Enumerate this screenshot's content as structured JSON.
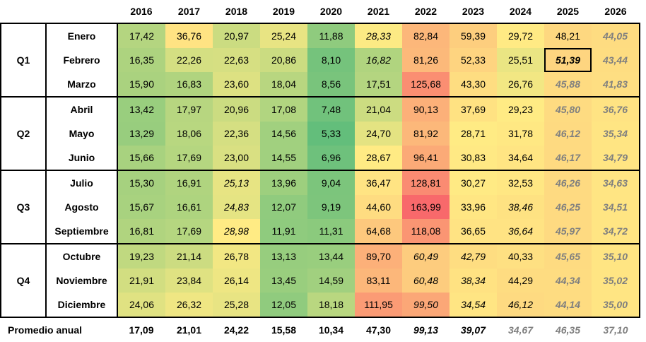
{
  "years": [
    "2016",
    "2017",
    "2018",
    "2019",
    "2020",
    "2021",
    "2022",
    "2023",
    "2024",
    "2025",
    "2026"
  ],
  "quarters": [
    "Q1",
    "Q2",
    "Q3",
    "Q4"
  ],
  "rows": [
    {
      "month": "Enero",
      "values": [
        "17,42",
        "36,76",
        "20,97",
        "25,24",
        "11,88",
        "28,33",
        "82,84",
        "59,39",
        "29,72",
        "48,21",
        "44,05"
      ]
    },
    {
      "month": "Febrero",
      "values": [
        "16,35",
        "22,26",
        "22,63",
        "20,86",
        "8,10",
        "16,82",
        "81,26",
        "52,33",
        "25,51",
        "51,39",
        "43,44"
      ]
    },
    {
      "month": "Marzo",
      "values": [
        "15,90",
        "16,83",
        "23,60",
        "18,04",
        "8,56",
        "17,51",
        "125,68",
        "43,30",
        "26,76",
        "45,88",
        "41,83"
      ]
    },
    {
      "month": "Abril",
      "values": [
        "13,42",
        "17,97",
        "20,96",
        "17,08",
        "7,48",
        "21,04",
        "90,13",
        "37,69",
        "29,23",
        "45,80",
        "36,76"
      ]
    },
    {
      "month": "Mayo",
      "values": [
        "13,29",
        "18,06",
        "22,36",
        "14,56",
        "5,33",
        "24,70",
        "81,92",
        "28,71",
        "31,78",
        "46,12",
        "35,34"
      ]
    },
    {
      "month": "Junio",
      "values": [
        "15,66",
        "17,69",
        "23,00",
        "14,55",
        "6,96",
        "28,67",
        "96,41",
        "30,83",
        "34,64",
        "46,17",
        "34,79"
      ]
    },
    {
      "month": "Julio",
      "values": [
        "15,30",
        "16,91",
        "25,13",
        "13,96",
        "9,04",
        "36,47",
        "128,81",
        "30,27",
        "32,53",
        "46,26",
        "34,63"
      ]
    },
    {
      "month": "Agosto",
      "values": [
        "15,67",
        "16,61",
        "24,83",
        "12,07",
        "9,19",
        "44,60",
        "163,99",
        "33,96",
        "38,46",
        "46,25",
        "34,51"
      ]
    },
    {
      "month": "Septiembre",
      "values": [
        "16,81",
        "17,69",
        "28,98",
        "11,91",
        "11,31",
        "64,68",
        "118,08",
        "36,65",
        "36,64",
        "45,97",
        "34,72"
      ]
    },
    {
      "month": "Octubre",
      "values": [
        "19,23",
        "21,14",
        "26,78",
        "13,13",
        "13,44",
        "89,70",
        "60,49",
        "42,79",
        "40,33",
        "45,65",
        "35,10"
      ]
    },
    {
      "month": "Noviembre",
      "values": [
        "21,91",
        "23,84",
        "26,14",
        "13,45",
        "14,59",
        "83,11",
        "60,48",
        "38,34",
        "44,29",
        "44,34",
        "35,02"
      ]
    },
    {
      "month": "Diciembre",
      "values": [
        "24,06",
        "26,32",
        "25,28",
        "12,05",
        "18,18",
        "111,95",
        "99,50",
        "34,54",
        "46,12",
        "44,14",
        "35,00"
      ]
    }
  ],
  "average": {
    "label": "Promedio anual",
    "values": [
      "17,09",
      "21,01",
      "24,22",
      "15,58",
      "10,34",
      "47,30",
      "99,13",
      "39,07",
      "34,67",
      "46,35",
      "37,10"
    ]
  },
  "styles": {
    "italic": [
      [
        0,
        5
      ],
      [
        1,
        5
      ],
      [
        6,
        2
      ],
      [
        7,
        2
      ],
      [
        8,
        2
      ],
      [
        9,
        6
      ],
      [
        10,
        6
      ],
      [
        9,
        7
      ],
      [
        10,
        7
      ],
      [
        11,
        7
      ],
      [
        11,
        6
      ],
      [
        7,
        8
      ],
      [
        8,
        8
      ],
      [
        11,
        8
      ]
    ],
    "grey": [
      [
        2,
        9
      ],
      [
        3,
        9
      ],
      [
        4,
        9
      ],
      [
        5,
        9
      ],
      [
        6,
        9
      ],
      [
        7,
        9
      ],
      [
        8,
        9
      ],
      [
        9,
        9
      ],
      [
        10,
        9
      ],
      [
        11,
        9
      ],
      [
        0,
        10
      ],
      [
        1,
        10
      ],
      [
        2,
        10
      ],
      [
        3,
        10
      ],
      [
        4,
        10
      ],
      [
        5,
        10
      ],
      [
        6,
        10
      ],
      [
        7,
        10
      ],
      [
        8,
        10
      ],
      [
        9,
        10
      ],
      [
        10,
        10
      ],
      [
        11,
        10
      ]
    ],
    "highlight": [
      1,
      9
    ],
    "avg_italic": [
      6,
      7
    ],
    "avg_grey": [
      8,
      9,
      10
    ]
  },
  "colors": {
    "min_color": "#63be7b",
    "mid_color": "#ffeb84",
    "max_color": "#f8696b",
    "text": "#000000",
    "grey_text": "#7f7f7f"
  }
}
